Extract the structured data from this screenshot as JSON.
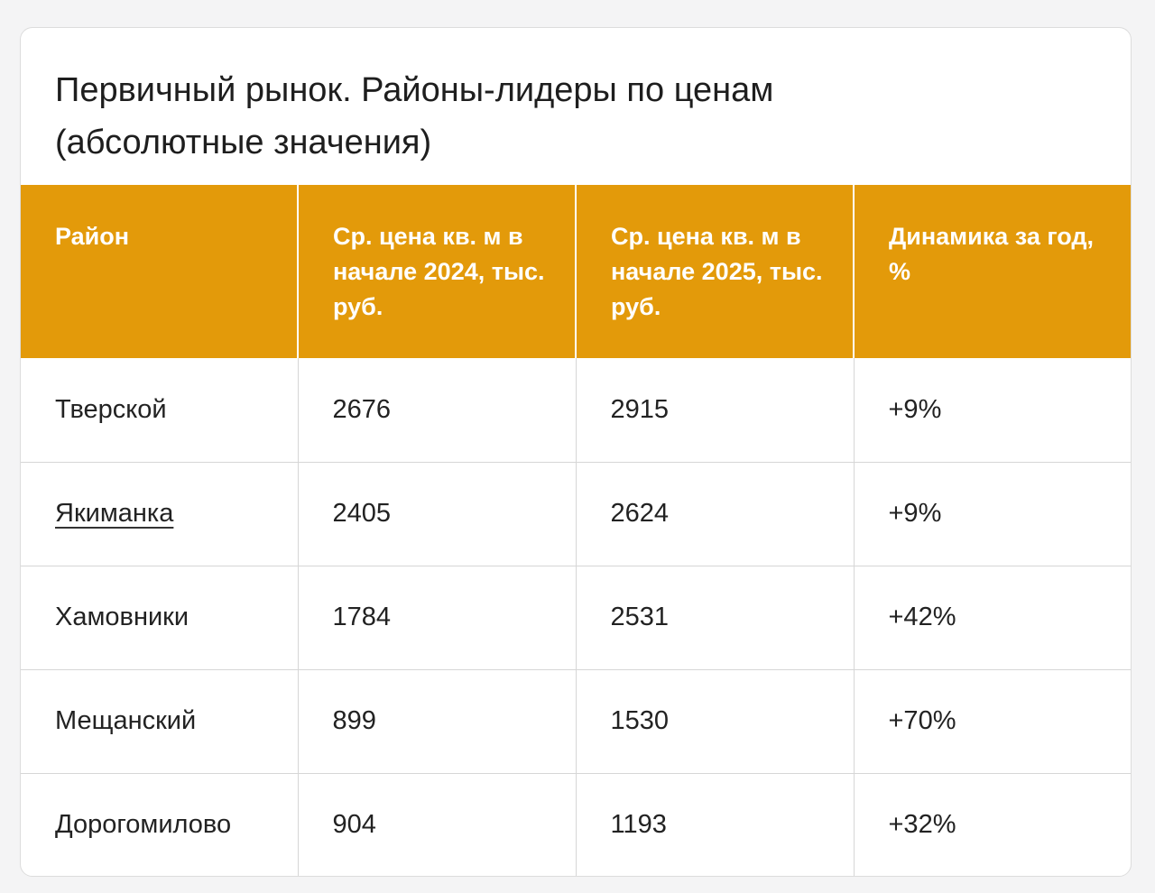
{
  "title": {
    "line1": "Первичный рынок. Районы-лидеры по ценам",
    "line2": "(абсолютные значения)"
  },
  "colors": {
    "header_background": "#e39a0a",
    "header_text": "#ffffff"
  },
  "table": {
    "headers": [
      "Район",
      "Ср. цена кв. м в начале 2024, тыс. руб.",
      "Ср. цена кв. м в начале 2025, тыс. руб.",
      "Динамика за год, %"
    ],
    "rows": [
      {
        "district": "Тверской",
        "price_2024": "2676",
        "price_2025": "2915",
        "change": "+9%"
      },
      {
        "district": "Якиманка",
        "price_2024": "2405",
        "price_2025": "2624",
        "change": "+9%"
      },
      {
        "district": "Хамовники",
        "price_2024": "1784",
        "price_2025": "2531",
        "change": "+42%"
      },
      {
        "district": "Мещанский",
        "price_2024": "899",
        "price_2025": "1530",
        "change": "+70%"
      },
      {
        "district": "Дорогомилово",
        "price_2024": "904",
        "price_2025": "1193",
        "change": "+32%"
      }
    ]
  }
}
